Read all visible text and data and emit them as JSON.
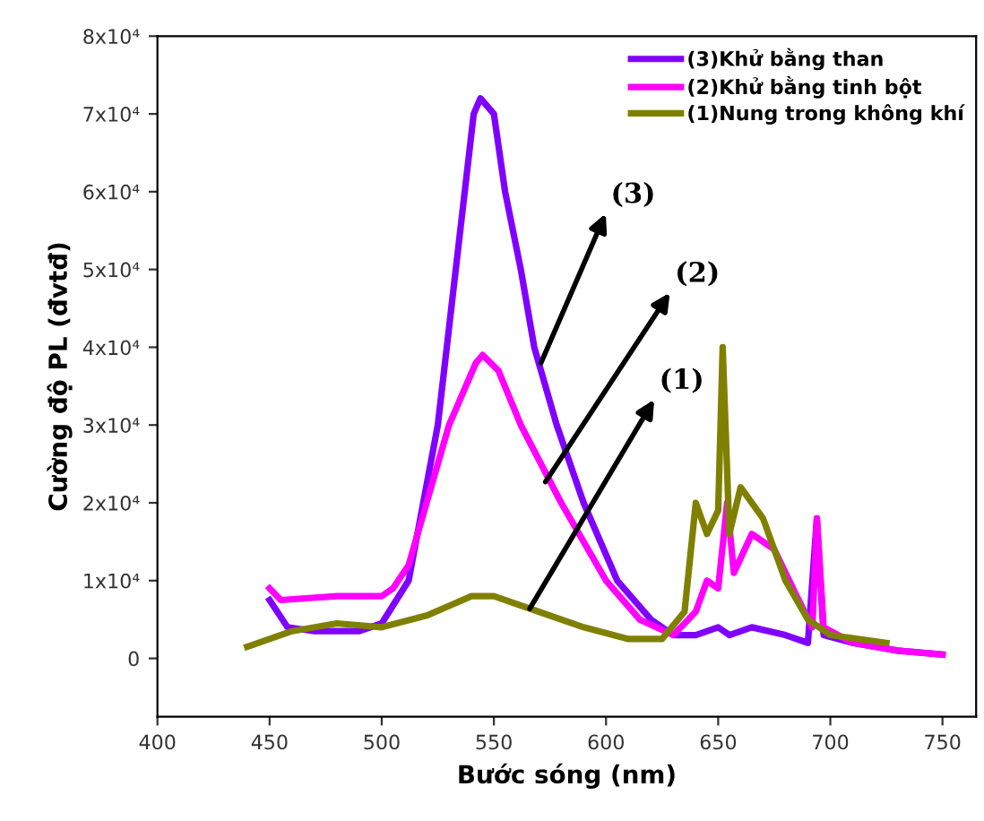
{
  "chart_data": {
    "type": "line",
    "xlabel": "Bước sóng (nm)",
    "ylabel": "Cường độ PL (đvtđ)",
    "xlim": [
      400,
      765
    ],
    "xticks": [
      400,
      450,
      500,
      550,
      600,
      650,
      700,
      750
    ],
    "ylim": [
      -7500,
      80000
    ],
    "yticks": [
      0,
      {
        "value": 10000,
        "label": "1x10⁴"
      },
      {
        "value": 20000,
        "label": "2x10⁴"
      },
      {
        "value": 30000,
        "label": "3x10⁴"
      },
      {
        "value": 40000,
        "label": "4x10⁴"
      },
      {
        "value": 50000,
        "label": "5x10⁴"
      },
      {
        "value": 60000,
        "label": "6x10⁴"
      },
      {
        "value": 70000,
        "label": "7x10⁴"
      },
      {
        "value": 80000,
        "label": "8x10⁴"
      }
    ],
    "grid": false,
    "legend": "top right",
    "marker": "none",
    "line_style": "solid",
    "series": [
      {
        "name": "(3)Khử bằng than",
        "color": "#8000ff",
        "x": [
          450,
          458,
          470,
          490,
          500,
          512,
          525,
          533,
          541,
          544,
          550,
          555,
          562,
          568,
          578,
          590,
          605,
          620,
          630,
          640,
          650,
          655,
          665,
          680,
          690,
          694,
          697,
          710,
          730,
          750
        ],
        "values": [
          7500,
          4000,
          3500,
          3500,
          4500,
          10000,
          30000,
          50000,
          70000,
          72000,
          70000,
          60000,
          50000,
          40000,
          30000,
          20000,
          10000,
          5000,
          3000,
          3000,
          4000,
          3000,
          4000,
          3000,
          2000,
          18000,
          3000,
          2000,
          1000,
          500
        ]
      },
      {
        "name": "(2)Khử bằng tinh bột",
        "color": "#ff00ff",
        "x": [
          450,
          455,
          480,
          500,
          505,
          512,
          520,
          530,
          542,
          545,
          552,
          562,
          580,
          600,
          615,
          630,
          640,
          645,
          650,
          654,
          657,
          665,
          675,
          685,
          692,
          694,
          697,
          710,
          730,
          750
        ],
        "values": [
          9000,
          7500,
          8000,
          8000,
          9000,
          12000,
          20000,
          30000,
          38000,
          39000,
          37000,
          30000,
          20000,
          10000,
          5000,
          3000,
          6000,
          10000,
          9000,
          20000,
          11000,
          16000,
          14000,
          8000,
          4000,
          18000,
          4000,
          2000,
          1000,
          500
        ]
      },
      {
        "name": "(1)Nung trong không khí",
        "color": "#808000",
        "x": [
          440,
          460,
          480,
          500,
          520,
          540,
          550,
          570,
          590,
          610,
          625,
          635,
          640,
          645,
          650,
          652,
          655,
          660,
          670,
          680,
          690,
          700,
          725
        ],
        "values": [
          1500,
          3500,
          4500,
          4000,
          5500,
          8000,
          8000,
          6000,
          4000,
          2500,
          2500,
          6000,
          20000,
          16000,
          19000,
          40000,
          16000,
          22000,
          18000,
          10000,
          5000,
          3000,
          2000
        ]
      }
    ],
    "annotations": [
      {
        "text": "(3)",
        "x": 571,
        "y": 38000
      },
      {
        "text": "(2)",
        "x": 573,
        "y": 22700
      },
      {
        "text": "(1)",
        "x": 566,
        "y": 6400
      }
    ]
  }
}
